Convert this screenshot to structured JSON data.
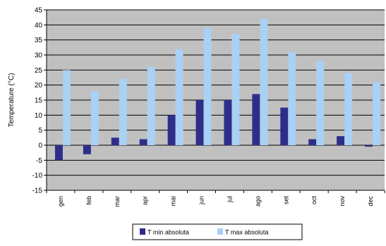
{
  "chart_data": {
    "type": "bar",
    "title": "",
    "xlabel": "",
    "ylabel": "Temperature (°C)",
    "ylim": [
      -15,
      45
    ],
    "ytick_step": 5,
    "grid": true,
    "legend_position": "bottom",
    "categories": [
      "gen",
      "feb",
      "mar",
      "apr",
      "mai",
      "jun",
      "jul",
      "ago",
      "set",
      "oct",
      "nov",
      "dec"
    ],
    "series": [
      {
        "name": "T min absoluta",
        "color": "#2e2e8a",
        "values": [
          -5,
          -3,
          2.5,
          2,
          10,
          15,
          15,
          17,
          12.5,
          2,
          3,
          -0.5
        ]
      },
      {
        "name": "T max absoluta",
        "color": "#a9d0f5",
        "values": [
          25,
          18,
          22,
          26,
          32,
          39,
          37,
          42,
          31,
          28,
          24,
          21
        ]
      }
    ],
    "colors": {
      "plot_background": "#c0c0c0",
      "gridline": "#000000",
      "axis": "#000000"
    }
  }
}
